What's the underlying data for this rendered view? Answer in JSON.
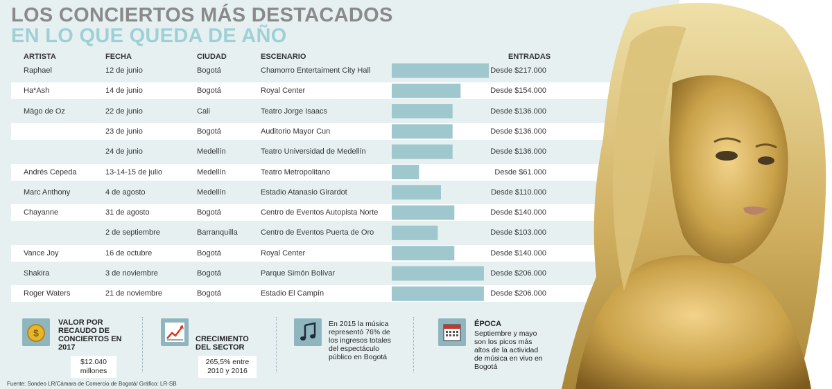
{
  "title": {
    "line1": "LOS CONCIERTOS MÁS DESTACADOS",
    "line2": "EN LO QUE QUEDA DE AÑO"
  },
  "columns": {
    "artist": "ARTISTA",
    "date": "FECHA",
    "city": "CIUDAD",
    "venue": "ESCENARIO",
    "price": "ENTRADAS"
  },
  "chart_data": {
    "type": "bar",
    "orientation": "horizontal",
    "value_unit": "COP",
    "categories": [
      "Chamorro Entertaiment City Hall",
      "Royal Center",
      "Teatro Jorge Isaacs",
      "Auditorio Mayor Cun",
      "Teatro Universidad de Medellín",
      "Teatro Metropolitano",
      "Estadio Atanasio Girardot",
      "Centro de Eventos Autopista Norte",
      "Centro de Eventos Puerta de Oro",
      "Royal Center",
      "Parque Simón Bolívar",
      "Estadio El Campín"
    ],
    "values": [
      217000,
      154000,
      136000,
      136000,
      136000,
      61000,
      110000,
      140000,
      103000,
      140000,
      206000,
      206000
    ],
    "xlim": [
      0,
      217000
    ],
    "grid": false,
    "legend": "none",
    "bar_color": "#9fc7ce"
  },
  "rows": [
    {
      "artist": "Raphael",
      "date": "12 de junio",
      "city": "Bogotá",
      "venue": "Chamorro Entertaiment City Hall",
      "price": "Desde $217.000"
    },
    {
      "artist": "Ha*Ash",
      "date": "14 de junio",
      "city": "Bogotá",
      "venue": "Royal Center",
      "price": "Desde $154.000"
    },
    {
      "artist": "Mägo de Oz",
      "date": "22 de junio",
      "city": "Cali",
      "venue": "Teatro Jorge Isaacs",
      "price": "Desde $136.000"
    },
    {
      "artist": "",
      "date": "23 de junio",
      "city": "Bogotá",
      "venue": "Auditorio Mayor Cun",
      "price": "Desde $136.000"
    },
    {
      "artist": "",
      "date": "24 de junio",
      "city": "Medellín",
      "venue": "Teatro Universidad de Medellín",
      "price": "Desde $136.000"
    },
    {
      "artist": "Andrés Cepeda",
      "date": "13-14-15 de julio",
      "city": "Medellín",
      "venue": "Teatro Metropolitano",
      "price": "Desde $61.000"
    },
    {
      "artist": "Marc Anthony",
      "date": "4 de agosto",
      "city": "Medellín",
      "venue": "Estadio Atanasio Girardot",
      "price": "Desde $110.000"
    },
    {
      "artist": "Chayanne",
      "date": "31 de agosto",
      "city": "Bogotá",
      "venue": "Centro de Eventos Autopista Norte",
      "price": "Desde $140.000"
    },
    {
      "artist": "",
      "date": "2 de septiembre",
      "city": "Barranquilla",
      "venue": "Centro de Eventos Puerta de Oro",
      "price": "Desde $103.000"
    },
    {
      "artist": "Vance Joy",
      "date": "16 de octubre",
      "city": "Bogotá",
      "venue": "Royal Center",
      "price": "Desde $140.000"
    },
    {
      "artist": "Shakira",
      "date": "3 de noviembre",
      "city": "Bogotá",
      "venue": "Parque Simón Bolívar",
      "price": "Desde $206.000"
    },
    {
      "artist": "Roger Waters",
      "date": "21 de noviembre",
      "city": "Bogotá",
      "venue": "Estadio El Campín",
      "price": "Desde $206.000"
    }
  ],
  "info": [
    {
      "icon": "coin-icon",
      "title": "VALOR POR RECAUDO DE CONCIERTOS EN 2017",
      "value": "$12.040 millones"
    },
    {
      "icon": "growth-chart-icon",
      "title": "CRECIMIENTO DEL SECTOR",
      "value": "265,5% entre 2010 y 2016"
    },
    {
      "icon": "music-note-icon",
      "text": "En 2015 la música representó 76% de los ingresos totales del espectáculo público en Bogotá"
    },
    {
      "icon": "calendar-icon",
      "title": "ÉPOCA",
      "text": "Septiembre y mayo son los picos más altos de la actividad de música en vivo en Bogotá"
    }
  ],
  "source": "Fuente: Sondeo LR/Cámara de Comercio de Bogotá/ Gráfico: LR-SB",
  "colors": {
    "bar": "#9fc7ce",
    "panel": "#e6f0f1",
    "title_grey": "#8a8a8a",
    "title_teal": "#9fd0d6",
    "icon_bg": "#8fb6bf",
    "gold": "#c9a24a"
  }
}
